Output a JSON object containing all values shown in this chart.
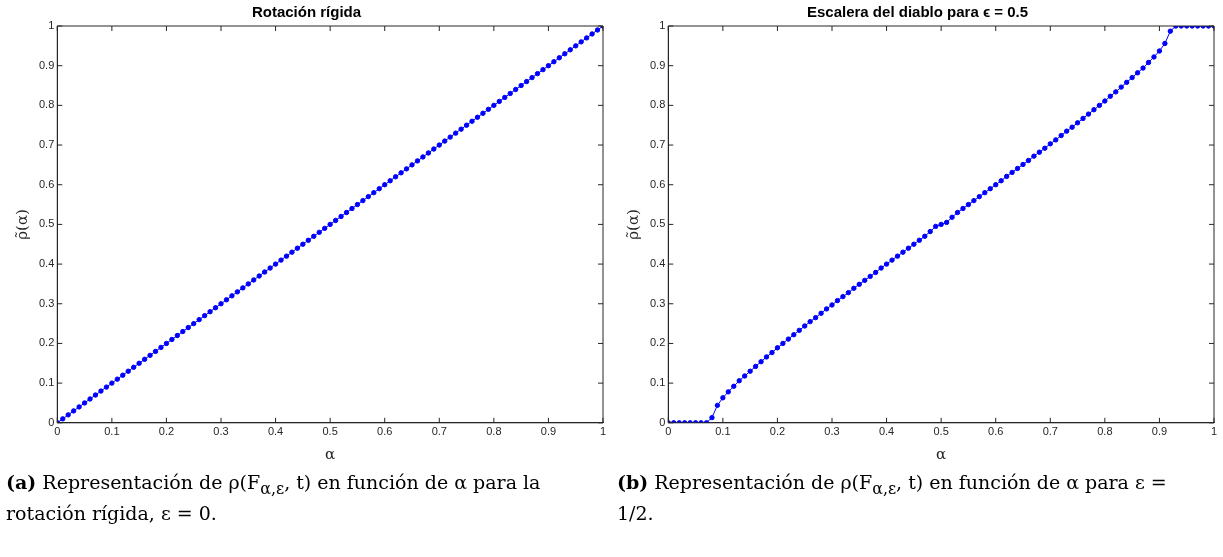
{
  "chart_data": [
    {
      "type": "line",
      "title": "Rotación rígida",
      "xlabel": "α",
      "ylabel": "ρ̃(α)",
      "marker": "circle",
      "line_style": "solid",
      "grid": false,
      "legend": false,
      "xlim": [
        0,
        1
      ],
      "ylim": [
        0,
        1
      ],
      "xticks": [
        0,
        0.1,
        0.2,
        0.3,
        0.4,
        0.5,
        0.6,
        0.7,
        0.8,
        0.9,
        1
      ],
      "yticks": [
        0,
        0.1,
        0.2,
        0.3,
        0.4,
        0.5,
        0.6,
        0.7,
        0.8,
        0.9,
        1
      ],
      "x": [
        0,
        0.01,
        0.02,
        0.03,
        0.04,
        0.05,
        0.06,
        0.07,
        0.08,
        0.09,
        0.1,
        0.11,
        0.12,
        0.13,
        0.14,
        0.15,
        0.16,
        0.17,
        0.18,
        0.19,
        0.2,
        0.21,
        0.22,
        0.23,
        0.24,
        0.25,
        0.26,
        0.27,
        0.28,
        0.29,
        0.3,
        0.31,
        0.32,
        0.33,
        0.34,
        0.35,
        0.36,
        0.37,
        0.38,
        0.39,
        0.4,
        0.41,
        0.42,
        0.43,
        0.44,
        0.45,
        0.46,
        0.47,
        0.48,
        0.49,
        0.5,
        0.51,
        0.52,
        0.53,
        0.54,
        0.55,
        0.56,
        0.57,
        0.58,
        0.59,
        0.6,
        0.61,
        0.62,
        0.63,
        0.64,
        0.65,
        0.66,
        0.67,
        0.68,
        0.69,
        0.7,
        0.71,
        0.72,
        0.73,
        0.74,
        0.75,
        0.76,
        0.77,
        0.78,
        0.79,
        0.8,
        0.81,
        0.82,
        0.83,
        0.84,
        0.85,
        0.86,
        0.87,
        0.88,
        0.89,
        0.9,
        0.91,
        0.92,
        0.93,
        0.94,
        0.95,
        0.96,
        0.97,
        0.98,
        0.99,
        1
      ],
      "series": [
        {
          "color": "#0000ff",
          "values": [
            0,
            0.01,
            0.02,
            0.03,
            0.04,
            0.05,
            0.06,
            0.07,
            0.08,
            0.09,
            0.1,
            0.11,
            0.12,
            0.13,
            0.14,
            0.15,
            0.16,
            0.17,
            0.18,
            0.19,
            0.2,
            0.21,
            0.22,
            0.23,
            0.24,
            0.25,
            0.26,
            0.27,
            0.28,
            0.29,
            0.3,
            0.31,
            0.32,
            0.33,
            0.34,
            0.35,
            0.36,
            0.37,
            0.38,
            0.39,
            0.4,
            0.41,
            0.42,
            0.43,
            0.44,
            0.45,
            0.46,
            0.47,
            0.48,
            0.49,
            0.5,
            0.51,
            0.52,
            0.53,
            0.54,
            0.55,
            0.56,
            0.57,
            0.58,
            0.59,
            0.6,
            0.61,
            0.62,
            0.63,
            0.64,
            0.65,
            0.66,
            0.67,
            0.68,
            0.69,
            0.7,
            0.71,
            0.72,
            0.73,
            0.74,
            0.75,
            0.76,
            0.77,
            0.78,
            0.79,
            0.8,
            0.81,
            0.82,
            0.83,
            0.84,
            0.85,
            0.86,
            0.87,
            0.88,
            0.89,
            0.9,
            0.91,
            0.92,
            0.93,
            0.94,
            0.95,
            0.96,
            0.97,
            0.98,
            0.99,
            1
          ]
        }
      ],
      "annotations": [
        "(a) Representación de ρ(F$_{α,ε}$, t) en función de α para la rotación rígida, ε = 0."
      ]
    },
    {
      "type": "line",
      "title": "Escalera del diablo para ϵ = 0.5",
      "xlabel": "α",
      "ylabel": "ρ̃(α)",
      "marker": "circle",
      "line_style": "solid",
      "grid": false,
      "legend": false,
      "xlim": [
        0,
        1
      ],
      "ylim": [
        0,
        1
      ],
      "xticks": [
        0,
        0.1,
        0.2,
        0.3,
        0.4,
        0.5,
        0.6,
        0.7,
        0.8,
        0.9,
        1
      ],
      "yticks": [
        0,
        0.1,
        0.2,
        0.3,
        0.4,
        0.5,
        0.6,
        0.7,
        0.8,
        0.9,
        1
      ],
      "x": [
        0,
        0.01,
        0.02,
        0.03,
        0.04,
        0.05,
        0.06,
        0.07,
        0.08,
        0.09,
        0.1,
        0.11,
        0.12,
        0.13,
        0.14,
        0.15,
        0.16,
        0.17,
        0.18,
        0.19,
        0.2,
        0.21,
        0.22,
        0.23,
        0.24,
        0.25,
        0.26,
        0.27,
        0.28,
        0.29,
        0.3,
        0.31,
        0.32,
        0.33,
        0.34,
        0.35,
        0.36,
        0.37,
        0.38,
        0.39,
        0.4,
        0.41,
        0.42,
        0.43,
        0.44,
        0.45,
        0.46,
        0.47,
        0.48,
        0.49,
        0.5,
        0.51,
        0.52,
        0.53,
        0.54,
        0.55,
        0.56,
        0.57,
        0.58,
        0.59,
        0.6,
        0.61,
        0.62,
        0.63,
        0.64,
        0.65,
        0.66,
        0.67,
        0.68,
        0.69,
        0.7,
        0.71,
        0.72,
        0.73,
        0.74,
        0.75,
        0.76,
        0.77,
        0.78,
        0.79,
        0.8,
        0.81,
        0.82,
        0.83,
        0.84,
        0.85,
        0.86,
        0.87,
        0.88,
        0.89,
        0.9,
        0.91,
        0.92,
        0.93,
        0.94,
        0.95,
        0.96,
        0.97,
        0.98,
        0.99,
        1
      ],
      "series": [
        {
          "color": "#0000ff",
          "values": [
            0,
            0,
            0,
            0,
            0,
            0,
            0,
            0,
            0.013,
            0.044,
            0.063,
            0.078,
            0.092,
            0.106,
            0.118,
            0.13,
            0.142,
            0.154,
            0.166,
            0.177,
            0.189,
            0.2,
            0.211,
            0.222,
            0.233,
            0.244,
            0.255,
            0.265,
            0.276,
            0.287,
            0.297,
            0.308,
            0.318,
            0.328,
            0.339,
            0.349,
            0.359,
            0.369,
            0.379,
            0.39,
            0.4,
            0.41,
            0.42,
            0.43,
            0.44,
            0.45,
            0.46,
            0.47,
            0.482,
            0.495,
            0.5,
            0.505,
            0.518,
            0.53,
            0.54,
            0.55,
            0.56,
            0.57,
            0.58,
            0.59,
            0.6,
            0.61,
            0.621,
            0.631,
            0.641,
            0.651,
            0.661,
            0.672,
            0.682,
            0.692,
            0.703,
            0.713,
            0.724,
            0.735,
            0.745,
            0.756,
            0.767,
            0.778,
            0.789,
            0.8,
            0.811,
            0.823,
            0.834,
            0.846,
            0.858,
            0.87,
            0.882,
            0.894,
            0.908,
            0.922,
            0.937,
            0.956,
            0.987,
            1,
            1,
            1,
            1,
            1,
            1,
            1,
            1
          ]
        }
      ],
      "annotations": [
        "(b) Representación de ρ(F$_{α,ε}$, t) en función de α para ε = 1/2."
      ]
    }
  ]
}
